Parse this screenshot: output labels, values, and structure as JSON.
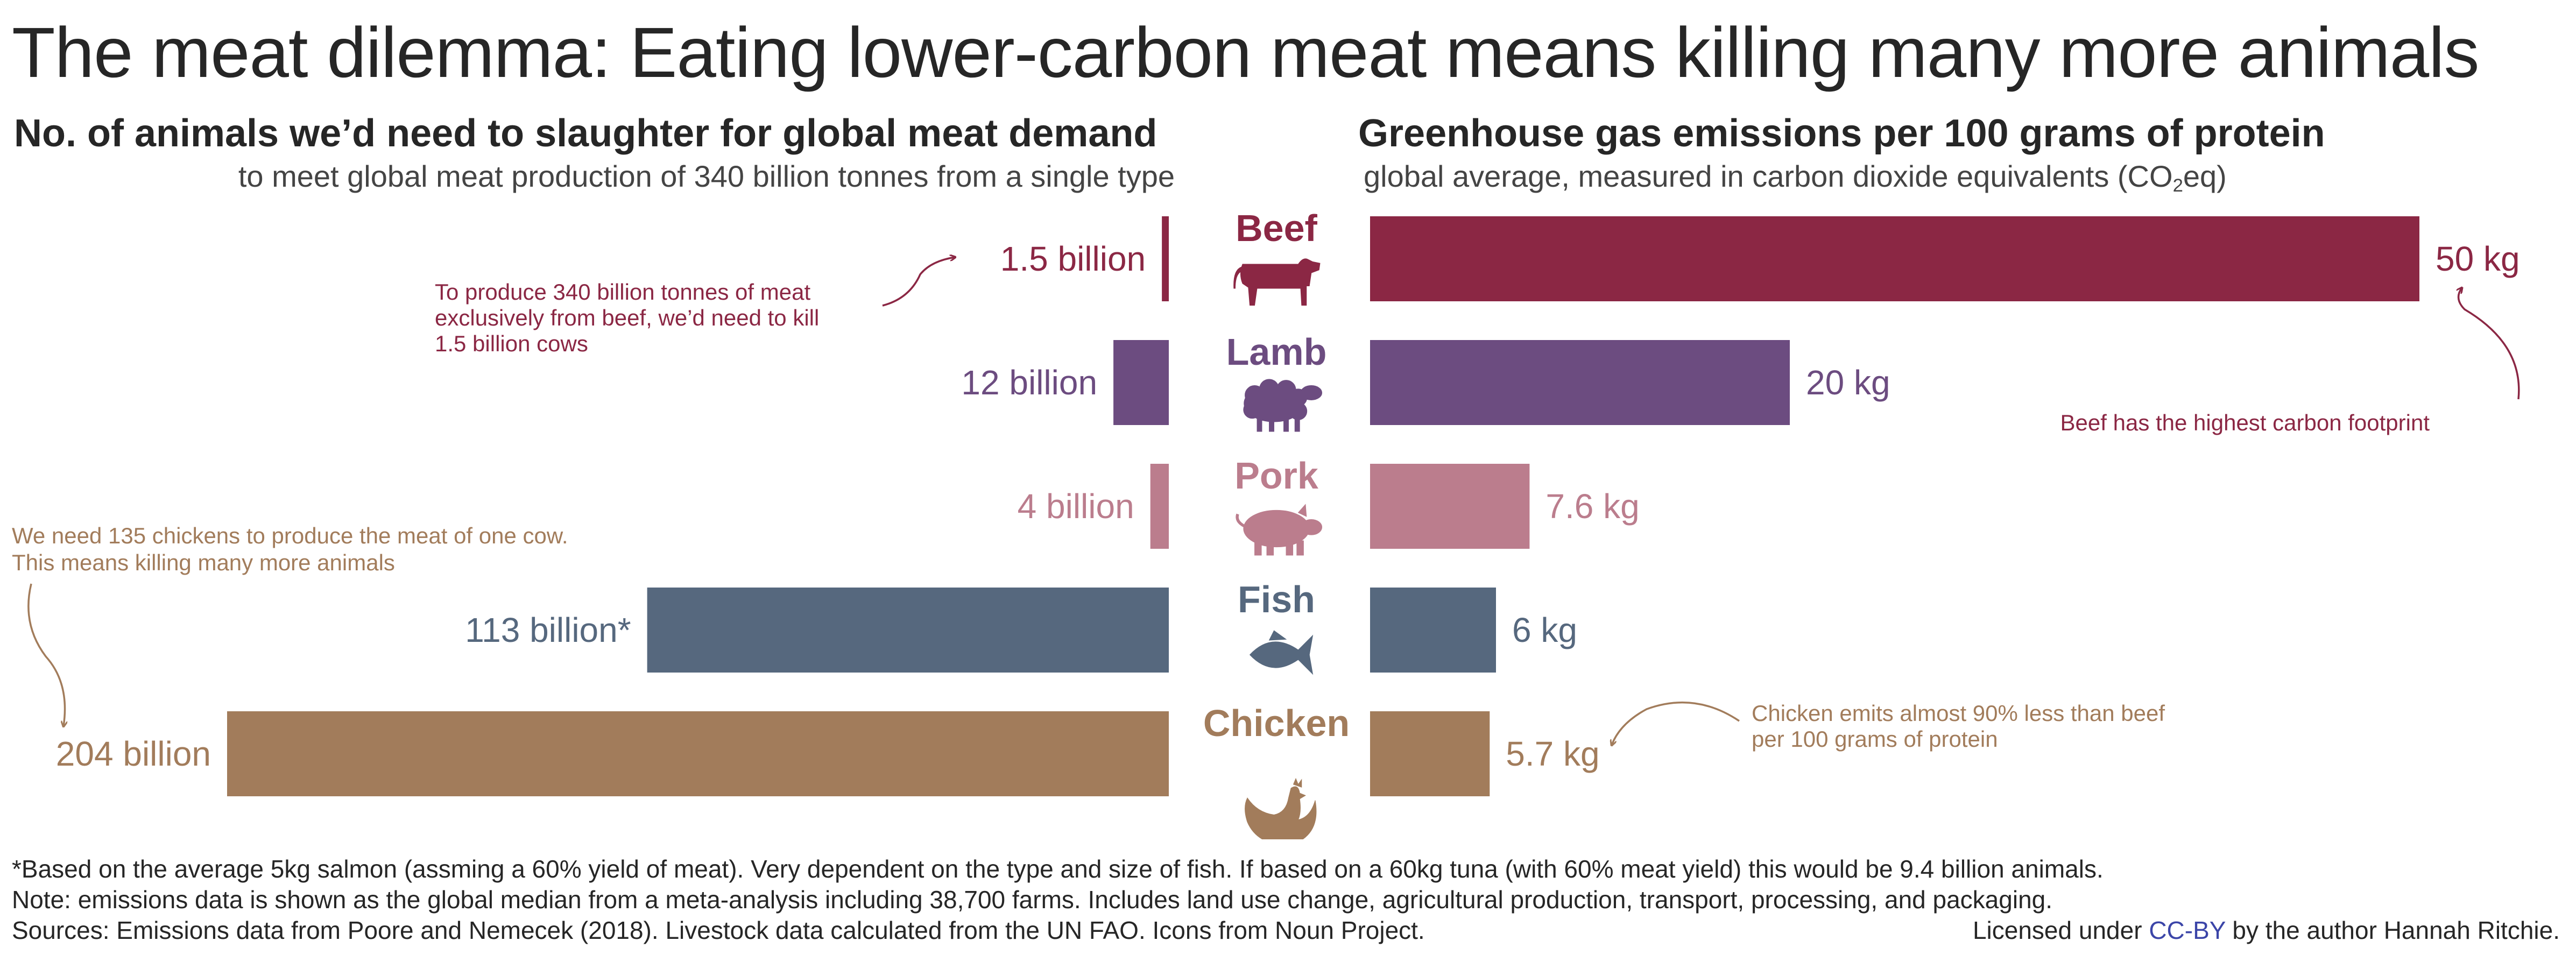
{
  "title": "The meat dilemma: Eating lower-carbon meat means killing many more animals",
  "left_panel": {
    "subtitle": "No. of animals we’d need to slaughter for global meat demand",
    "description": "to meet global meat production of 340 billion tonnes from a single type"
  },
  "right_panel": {
    "subtitle": "Greenhouse gas emissions per 100 grams of protein",
    "description_before": "global average, measured in carbon dioxide equivalents (CO",
    "description_sub": "2",
    "description_after": "eq)"
  },
  "chart_data": [
    {
      "type": "bar",
      "orientation": "horizontal",
      "direction": "right-to-left",
      "title": "No. of animals we’d need to slaughter for global meat demand",
      "unit": "billion animals",
      "categories": [
        "Beef",
        "Lamb",
        "Pork",
        "Fish",
        "Chicken"
      ],
      "values": [
        1.5,
        12,
        4,
        113,
        204
      ],
      "value_labels": [
        "1.5 billion",
        "12 billion",
        "4 billion",
        "113 billion*",
        "204 billion"
      ]
    },
    {
      "type": "bar",
      "orientation": "horizontal",
      "direction": "left-to-right",
      "title": "Greenhouse gas emissions per 100 grams of protein",
      "unit": "kg CO2eq",
      "categories": [
        "Beef",
        "Lamb",
        "Pork",
        "Fish",
        "Chicken"
      ],
      "values": [
        50,
        20,
        7.6,
        6,
        5.7
      ],
      "value_labels": [
        "50 kg",
        "20 kg",
        "7.6 kg",
        "6 kg",
        "5.7 kg"
      ]
    }
  ],
  "meats": [
    {
      "name": "Beef",
      "color": "#8b2744",
      "icon": "cow-icon"
    },
    {
      "name": "Lamb",
      "color": "#6c4c80",
      "icon": "sheep-icon"
    },
    {
      "name": "Pork",
      "color": "#bb7d8d",
      "icon": "pig-icon"
    },
    {
      "name": "Fish",
      "color": "#56687e",
      "icon": "fish-icon"
    },
    {
      "name": "Chicken",
      "color": "#a27c5b",
      "icon": "chicken-icon"
    }
  ],
  "annotations": {
    "beef_animals": [
      "To produce 340 billion tonnes of meat",
      "exclusively from beef, we’d need to kill",
      "1.5 billion cows"
    ],
    "beef_emissions": [
      "Beef has the highest carbon footprint"
    ],
    "chicken_animals": [
      "We need 135 chickens to produce the meat of one cow.",
      "This means killing many more animals"
    ],
    "chicken_emissions": [
      "Chicken emits almost 90% less than beef",
      "per 100 grams of protein"
    ]
  },
  "footer": {
    "footnote1": "*Based on the average 5kg salmon (assming a 60% yield of meat). Very dependent on the type and size of fish. If based on a 60kg tuna (with 60% meat yield) this would be 9.4 billion animals.",
    "footnote2": "Note: emissions data is shown as the global median from a meta-analysis including 38,700 farms. Includes land use change, agricultural production, transport, processing, and packaging.",
    "sources": "Sources: Emissions data from Poore and Nemecek (2018). Livestock data calculated from the UN FAO. Icons from Noun Project.",
    "license_prefix": "Licensed under ",
    "license_link": "CC-BY",
    "license_suffix": " by the author Hannah Ritchie."
  }
}
